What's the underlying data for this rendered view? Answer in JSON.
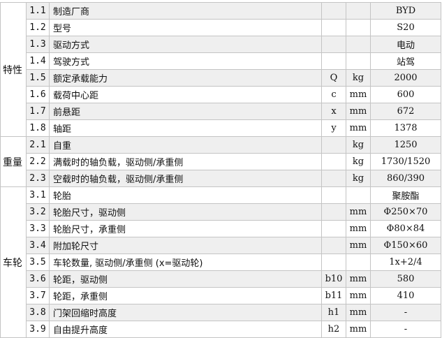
{
  "groups": [
    {
      "label": "特性",
      "rows": [
        {
          "no": "1.1",
          "name": "制造厂商",
          "sym": "",
          "unit": "",
          "value": "BYD"
        },
        {
          "no": "1.2",
          "name": "型号",
          "sym": "",
          "unit": "",
          "value": "S20"
        },
        {
          "no": "1.3",
          "name": "驱动方式",
          "sym": "",
          "unit": "",
          "value": "电动"
        },
        {
          "no": "1.4",
          "name": "驾驶方式",
          "sym": "",
          "unit": "",
          "value": "站驾"
        },
        {
          "no": "1.5",
          "name": "额定承载能力",
          "sym": "Q",
          "unit": "kg",
          "value": "2000"
        },
        {
          "no": "1.6",
          "name": "载荷中心距",
          "sym": "c",
          "unit": "mm",
          "value": "600"
        },
        {
          "no": "1.7",
          "name": "前悬距",
          "sym": "x",
          "unit": "mm",
          "value": "672"
        },
        {
          "no": "1.8",
          "name": "轴距",
          "sym": "y",
          "unit": "mm",
          "value": "1378"
        }
      ]
    },
    {
      "label": "重量",
      "rows": [
        {
          "no": "2.1",
          "name": "自重",
          "sym": "",
          "unit": "kg",
          "value": "1250"
        },
        {
          "no": "2.2",
          "name": "满载时的轴负载，驱动侧/承重侧",
          "sym": "",
          "unit": "kg",
          "value": "1730/1520"
        },
        {
          "no": "2.3",
          "name": "空载时的轴负载，驱动侧/承重侧",
          "sym": "",
          "unit": "kg",
          "value": "860/390"
        }
      ]
    },
    {
      "label": "车轮",
      "rows": [
        {
          "no": "3.1",
          "name": "轮胎",
          "sym": "",
          "unit": "",
          "value": "聚胺酯"
        },
        {
          "no": "3.2",
          "name": "轮胎尺寸，驱动侧",
          "sym": "",
          "unit": "mm",
          "value": "Φ250×70"
        },
        {
          "no": "3.3",
          "name": "轮胎尺寸，承重侧",
          "sym": "",
          "unit": "mm",
          "value": "Φ80×84"
        },
        {
          "no": "3.4",
          "name": "附加轮尺寸",
          "sym": "",
          "unit": "mm",
          "value": "Φ150×60"
        },
        {
          "no": "3.5",
          "name": "车轮数量, 驱动侧/承重侧 (x=驱动轮)",
          "sym": "",
          "unit": "",
          "value": "1x+2/4"
        },
        {
          "no": "3.6",
          "name": "轮距，驱动侧",
          "sym": "b10",
          "unit": "mm",
          "value": "580"
        },
        {
          "no": "3.7",
          "name": "轮距，承重侧",
          "sym": "b11",
          "unit": "mm",
          "value": "410"
        },
        {
          "no": "3.8",
          "name": "门架回缩时高度",
          "sym": "h1",
          "unit": "mm",
          "value": "-"
        },
        {
          "no": "3.9",
          "name": "自由提升高度",
          "sym": "h2",
          "unit": "mm",
          "value": "-"
        }
      ]
    }
  ]
}
